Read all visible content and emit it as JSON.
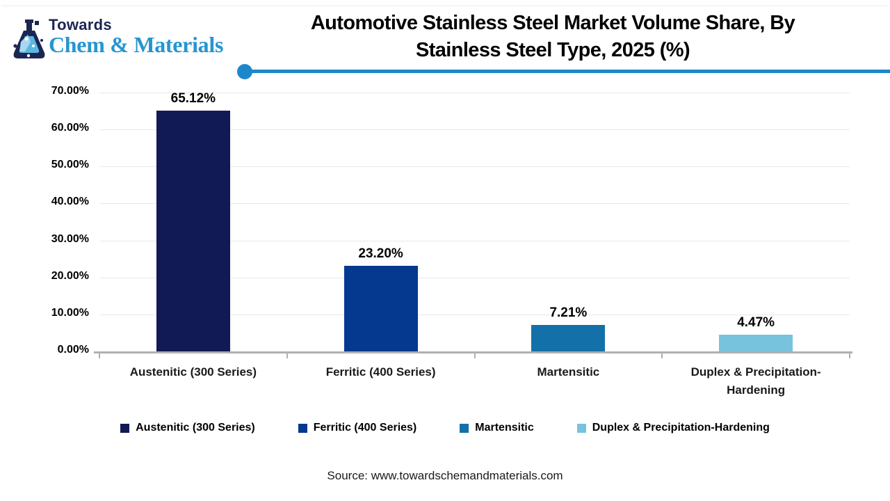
{
  "logo": {
    "line1": "Towards",
    "line2": "Chem & Materials"
  },
  "header": {
    "title_line1": "Automotive Stainless Steel Market Volume Share, By",
    "title_line2": "Stainless Steel Type, 2025 (%)",
    "accent_color": "#1E87CB"
  },
  "chart_data": {
    "type": "bar",
    "title": "Automotive Stainless Steel Market Volume Share, By Stainless Steel Type, 2025 (%)",
    "categories": [
      "Austenitic (300 Series)",
      "Ferritic (400 Series)",
      "Martensitic",
      "Duplex & Precipitation-Hardening"
    ],
    "values": [
      65.12,
      23.2,
      7.21,
      4.47
    ],
    "value_labels": [
      "65.12%",
      "23.20%",
      "7.21%",
      "4.47%"
    ],
    "bar_colors": [
      "#121A55",
      "#05388F",
      "#1470A8",
      "#77C3DD"
    ],
    "xlabel": "",
    "ylabel": "",
    "ylim": [
      0,
      70
    ],
    "ytick_labels": [
      "70.00%",
      "60.00%",
      "50.00%",
      "40.00%",
      "30.00%",
      "20.00%",
      "10.00%",
      "0.00%"
    ],
    "grid": true,
    "legend_position": "bottom",
    "legend": [
      {
        "label": "Austenitic (300 Series)",
        "color": "#121A55"
      },
      {
        "label": "Ferritic (400 Series)",
        "color": "#05388F"
      },
      {
        "label": "Martensitic",
        "color": "#1470A8"
      },
      {
        "label": "Duplex & Precipitation-Hardening",
        "color": "#77C3DD"
      }
    ]
  },
  "footer": {
    "source": "Source: www.towardschemandmaterials.com"
  }
}
